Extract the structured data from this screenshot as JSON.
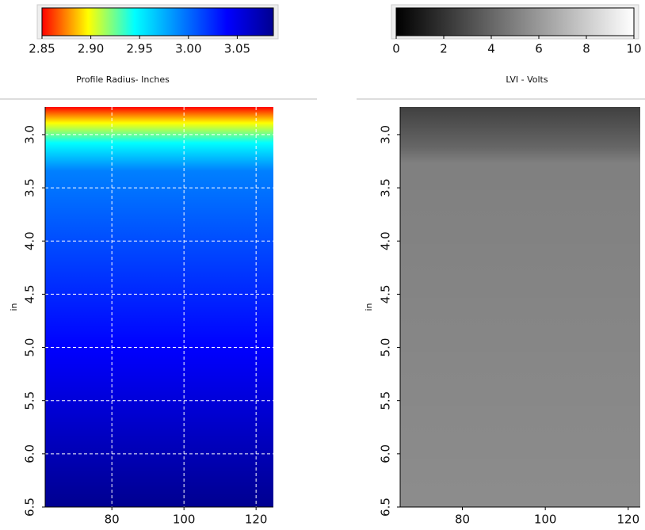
{
  "chart_data": [
    {
      "type": "heatmap",
      "colorbar_label": "Profile Radius- Inches",
      "colorscale": [
        "#ff0000",
        "#ffff00",
        "#00ffff",
        "#0080ff",
        "#0000ff",
        "#000090"
      ],
      "clim": [
        2.85,
        3.087
      ],
      "cticks": [
        2.85,
        {
          "value": 2.9,
          "label": "2.90"
        },
        2.95,
        {
          "value": 3.0,
          "label": "3.00"
        },
        3.05
      ],
      "xlim": [
        61.5,
        124.8
      ],
      "xticks": [
        80,
        100,
        120
      ],
      "ylim": [
        2.74,
        6.5
      ],
      "yticks": [
        {
          "value": 3.0,
          "label": "3.0"
        },
        3.5,
        {
          "value": 4.0,
          "label": "4.0"
        },
        4.5,
        {
          "value": 5.0,
          "label": "5.0"
        },
        5.5,
        {
          "value": 6.0,
          "label": "6.0"
        },
        6.5
      ],
      "ylabel": "in",
      "grid": true
    },
    {
      "type": "heatmap",
      "colorbar_label": "LVI - Volts",
      "colorscale": [
        "#000000",
        "#ffffff"
      ],
      "clim": [
        0,
        10
      ],
      "cticks": [
        0,
        2,
        4,
        6,
        8,
        10
      ],
      "xlim": [
        65,
        122.9
      ],
      "xticks": [
        80,
        100,
        120
      ],
      "ylim": [
        2.74,
        6.5
      ],
      "yticks": [
        {
          "value": 3.0,
          "label": "3.0"
        },
        3.5,
        {
          "value": 4.0,
          "label": "4.0"
        },
        4.5,
        {
          "value": 5.0,
          "label": "5.0"
        },
        5.5,
        {
          "value": 6.0,
          "label": "6.0"
        },
        6.5
      ],
      "ylabel": "in",
      "grid": false
    }
  ]
}
